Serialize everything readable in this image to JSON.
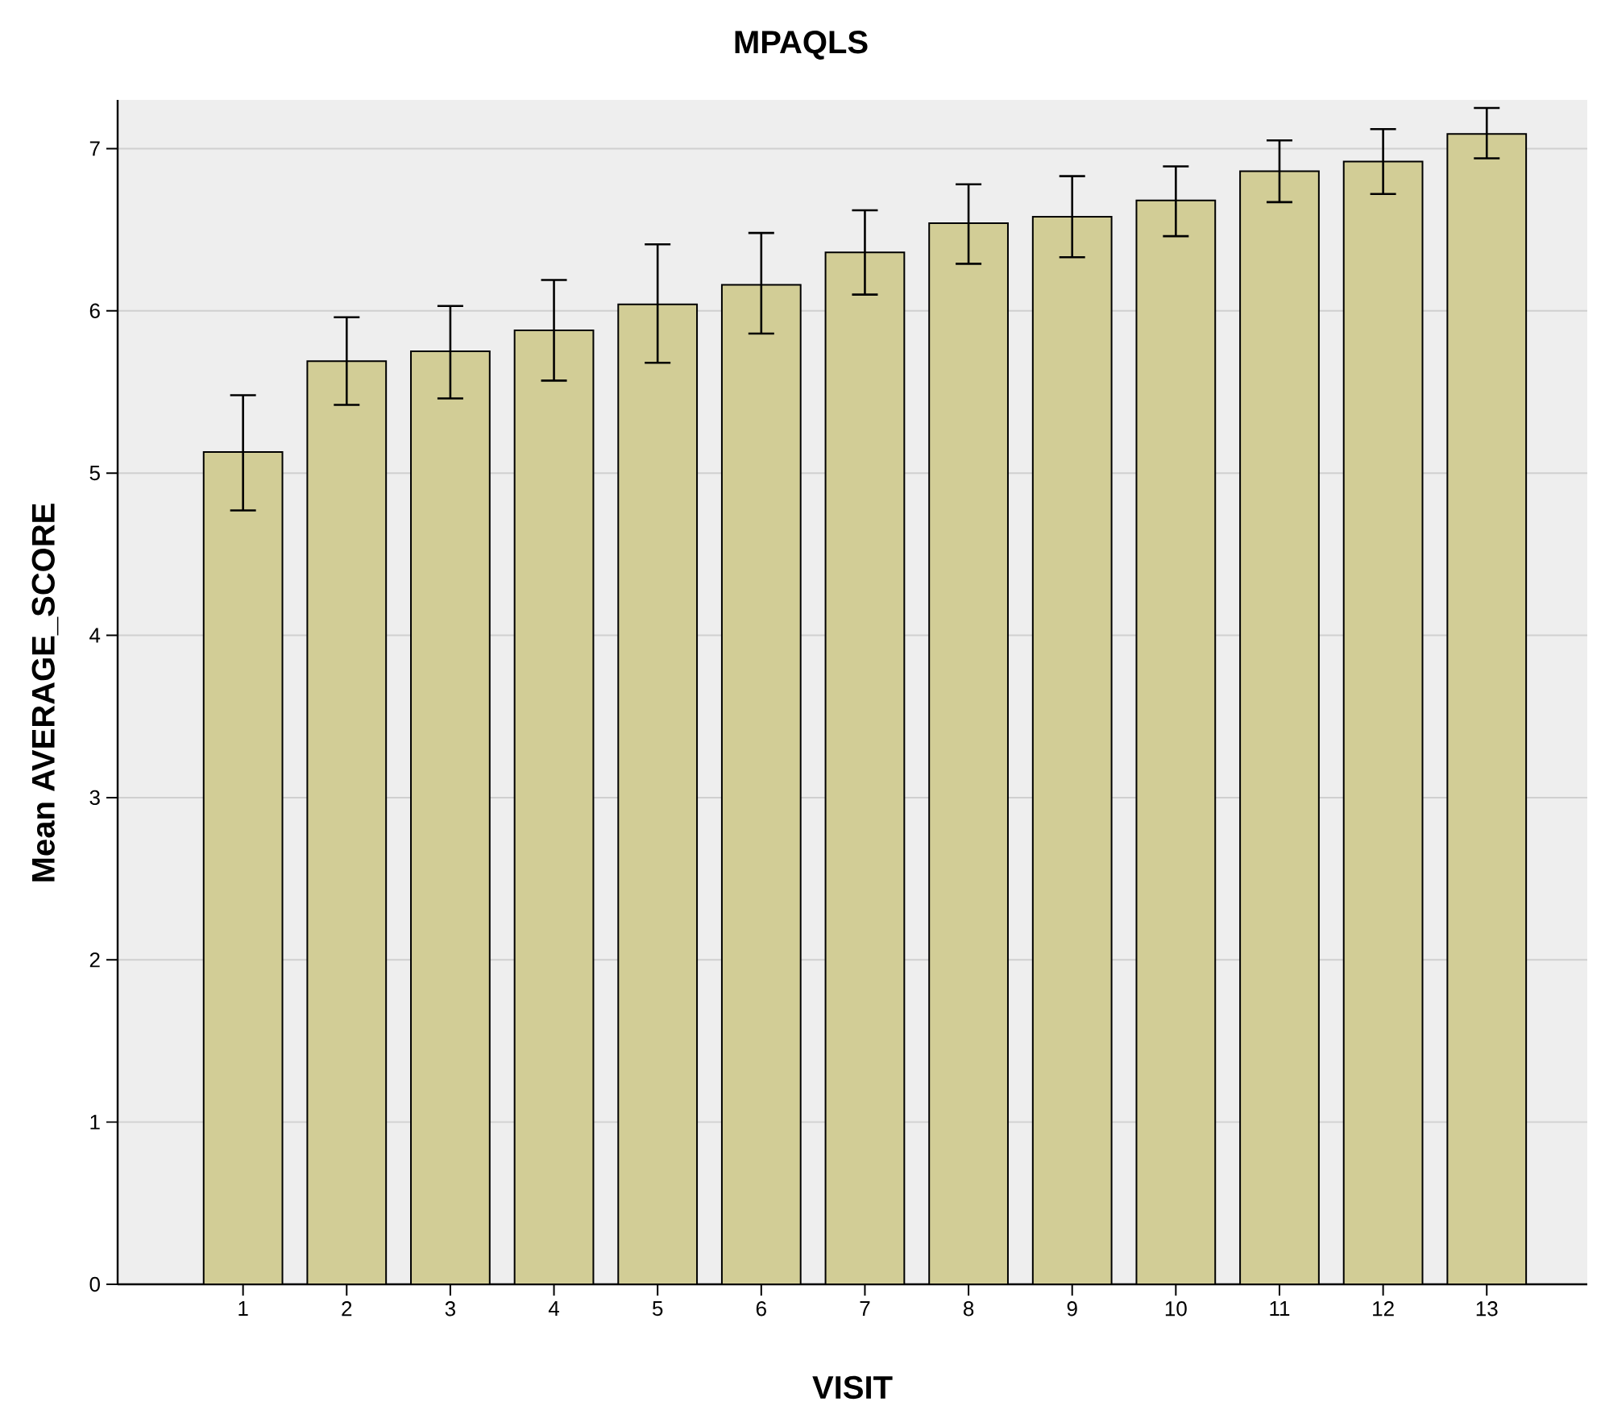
{
  "chart_data": {
    "type": "bar",
    "title": "MPAQLS",
    "xlabel": "VISIT",
    "ylabel": "Mean AVERAGE_SCORE",
    "categories": [
      "1",
      "2",
      "3",
      "4",
      "5",
      "6",
      "7",
      "8",
      "9",
      "10",
      "11",
      "12",
      "13"
    ],
    "values": [
      5.13,
      5.69,
      5.75,
      5.88,
      6.04,
      6.16,
      6.36,
      6.54,
      6.58,
      6.68,
      6.86,
      6.92,
      7.09
    ],
    "errors": [
      [
        4.77,
        5.48
      ],
      [
        5.42,
        5.96
      ],
      [
        5.46,
        6.03
      ],
      [
        5.57,
        6.19
      ],
      [
        5.68,
        6.41
      ],
      [
        5.86,
        6.48
      ],
      [
        6.1,
        6.62
      ],
      [
        6.29,
        6.78
      ],
      [
        6.33,
        6.83
      ],
      [
        6.46,
        6.89
      ],
      [
        6.67,
        7.05
      ],
      [
        6.72,
        7.12
      ],
      [
        6.94,
        7.25
      ]
    ],
    "color": "#d2cd96",
    "ylim": [
      0,
      7.3
    ],
    "yticks": [
      0,
      1,
      2,
      3,
      4,
      5,
      6,
      7
    ],
    "grid": "y"
  }
}
